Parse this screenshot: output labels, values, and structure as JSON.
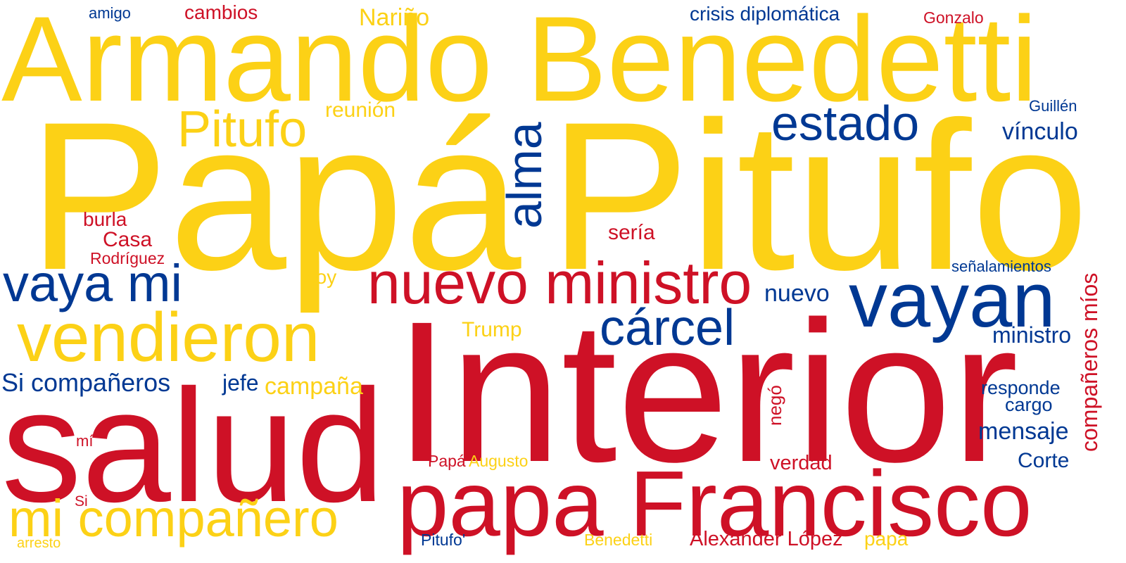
{
  "colors": {
    "yellow": "#FCD116",
    "blue": "#003893",
    "red": "#CE1126"
  },
  "words": [
    {
      "text": "Armando Benedetti",
      "color": "yellow"
    },
    {
      "text": "Papá",
      "color": "yellow"
    },
    {
      "text": "Pitufo",
      "color": "yellow"
    },
    {
      "text": "Pitufo",
      "color": "yellow"
    },
    {
      "text": "Interior",
      "color": "red"
    },
    {
      "text": "salud",
      "color": "red"
    },
    {
      "text": "papa Francisco",
      "color": "red"
    },
    {
      "text": "nuevo ministro",
      "color": "red"
    },
    {
      "text": "vendieron",
      "color": "yellow"
    },
    {
      "text": "vaya mi",
      "color": "blue"
    },
    {
      "text": "vayan",
      "color": "blue"
    },
    {
      "text": "mi compañero",
      "color": "yellow"
    },
    {
      "text": "cárcel",
      "color": "blue"
    },
    {
      "text": "estado",
      "color": "blue"
    },
    {
      "text": "alma",
      "color": "blue"
    },
    {
      "text": "reunión",
      "color": "yellow"
    },
    {
      "text": "Nariño",
      "color": "yellow"
    },
    {
      "text": "amigo",
      "color": "blue"
    },
    {
      "text": "cambios",
      "color": "red"
    },
    {
      "text": "crisis diplomática",
      "color": "blue"
    },
    {
      "text": "Gonzalo",
      "color": "red"
    },
    {
      "text": "Guillén",
      "color": "blue"
    },
    {
      "text": "vínculo",
      "color": "blue"
    },
    {
      "text": "señalamientos",
      "color": "blue"
    },
    {
      "text": "burla",
      "color": "red"
    },
    {
      "text": "Casa",
      "color": "red"
    },
    {
      "text": "Rodríguez",
      "color": "red"
    },
    {
      "text": "sería",
      "color": "red"
    },
    {
      "text": "Soy",
      "color": "yellow"
    },
    {
      "text": "nuevo",
      "color": "blue"
    },
    {
      "text": "Trump",
      "color": "yellow"
    },
    {
      "text": "ministro",
      "color": "blue"
    },
    {
      "text": "compañeros míos",
      "color": "red"
    },
    {
      "text": "Si compañeros",
      "color": "blue"
    },
    {
      "text": "jefe",
      "color": "blue"
    },
    {
      "text": "campaña",
      "color": "yellow"
    },
    {
      "text": "negó",
      "color": "red"
    },
    {
      "text": "responde",
      "color": "blue"
    },
    {
      "text": "cargo",
      "color": "blue"
    },
    {
      "text": "mensaje",
      "color": "blue"
    },
    {
      "text": "mí",
      "color": "red"
    },
    {
      "text": "Papá",
      "color": "red"
    },
    {
      "text": "Augusto",
      "color": "yellow"
    },
    {
      "text": "verdad",
      "color": "red"
    },
    {
      "text": "Corte",
      "color": "blue"
    },
    {
      "text": "Si",
      "color": "red"
    },
    {
      "text": "arresto",
      "color": "yellow"
    },
    {
      "text": "Pitufo'",
      "color": "blue"
    },
    {
      "text": "Benedetti",
      "color": "yellow"
    },
    {
      "text": "Alexander López",
      "color": "red"
    },
    {
      "text": "papa",
      "color": "yellow"
    }
  ]
}
